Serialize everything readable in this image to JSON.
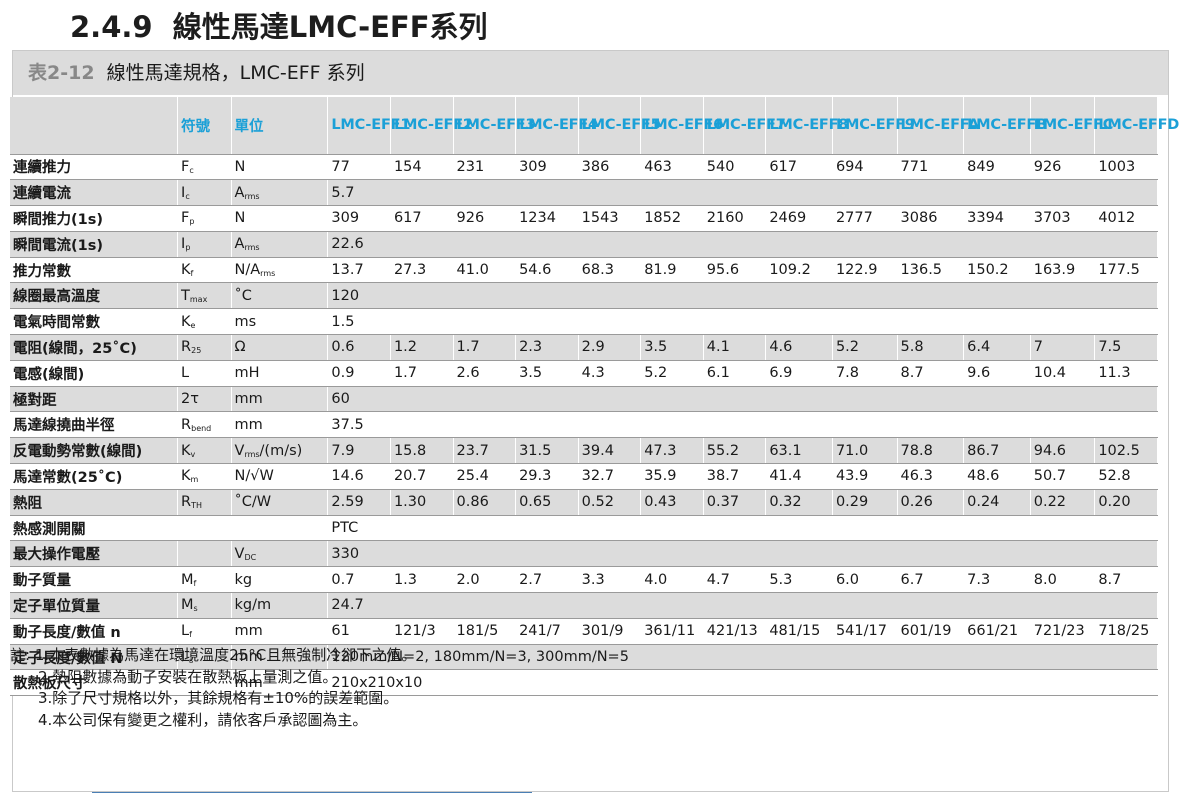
{
  "section": {
    "number": "2.4.9",
    "title": "線性馬達LMC-EFF系列"
  },
  "caption": {
    "number": "表2-12",
    "title": "線性馬達規格，LMC-EFF 系列"
  },
  "table": {
    "header": {
      "param": "",
      "symbol": "符號",
      "unit": "單位",
      "models": [
        "LMC-EFF1",
        "LMC-EFF2",
        "LMC-EFF3",
        "LMC-EFF4",
        "LMC-EFF5",
        "LMC-EFF6",
        "LMC-EFF7",
        "LMC-EFF8",
        "LMC-EFF9",
        "LMC-EFFA",
        "LMC-EFFB",
        "LMC-EFFC",
        "LMC-EFFD"
      ]
    },
    "rows": [
      {
        "param": "連續推力",
        "sym": "F",
        "sub": "c",
        "unit": "N",
        "unit_sub": "",
        "values": [
          "77",
          "154",
          "231",
          "309",
          "386",
          "463",
          "540",
          "617",
          "694",
          "771",
          "849",
          "926",
          "1003"
        ]
      },
      {
        "param": "連續電流",
        "sym": "I",
        "sub": "c",
        "unit": "A",
        "unit_sub": "rms",
        "span": "5.7"
      },
      {
        "param": "瞬間推力(1s)",
        "sym": "F",
        "sub": "p",
        "unit": "N",
        "unit_sub": "",
        "values": [
          "309",
          "617",
          "926",
          "1234",
          "1543",
          "1852",
          "2160",
          "2469",
          "2777",
          "3086",
          "3394",
          "3703",
          "4012"
        ]
      },
      {
        "param": "瞬間電流(1s)",
        "sym": "I",
        "sub": "p",
        "unit": "A",
        "unit_sub": "rms",
        "span": "22.6"
      },
      {
        "param": "推力常數",
        "sym": "K",
        "sub": "f",
        "unit": "N/A",
        "unit_sub": "rms",
        "values": [
          "13.7",
          "27.3",
          "41.0",
          "54.6",
          "68.3",
          "81.9",
          "95.6",
          "109.2",
          "122.9",
          "136.5",
          "150.2",
          "163.9",
          "177.5"
        ]
      },
      {
        "param": "線圈最高溫度",
        "sym": "T",
        "sub": "max",
        "unit": "˚C",
        "unit_sub": "",
        "span": "120"
      },
      {
        "param": "電氣時間常數",
        "sym": "K",
        "sub": "e",
        "unit": "ms",
        "unit_sub": "",
        "span": "1.5"
      },
      {
        "param": "電阻(線間，25˚C)",
        "sym": "R",
        "sub": "25",
        "unit": "Ω",
        "unit_sub": "",
        "values": [
          "0.6",
          "1.2",
          "1.7",
          "2.3",
          "2.9",
          "3.5",
          "4.1",
          "4.6",
          "5.2",
          "5.8",
          "6.4",
          "7",
          "7.5"
        ]
      },
      {
        "param": "電感(線間)",
        "sym": "L",
        "sub": "",
        "unit": "mH",
        "unit_sub": "",
        "values": [
          "0.9",
          "1.7",
          "2.6",
          "3.5",
          "4.3",
          "5.2",
          "6.1",
          "6.9",
          "7.8",
          "8.7",
          "9.6",
          "10.4",
          "11.3"
        ]
      },
      {
        "param": "極對距",
        "sym": "2τ",
        "sub": "",
        "unit": "mm",
        "unit_sub": "",
        "span": "60"
      },
      {
        "param": "馬達線撓曲半徑",
        "sym": "R",
        "sub": "bend",
        "unit": "mm",
        "unit_sub": "",
        "span": "37.5"
      },
      {
        "param": "反電動勢常數(線間)",
        "sym": "K",
        "sub": "v",
        "unit": "V",
        "unit_sub": "rms",
        "unit_tail": "/(m/s)",
        "values": [
          "7.9",
          "15.8",
          "23.7",
          "31.5",
          "39.4",
          "47.3",
          "55.2",
          "63.1",
          "71.0",
          "78.8",
          "86.7",
          "94.6",
          "102.5"
        ]
      },
      {
        "param": "馬達常數(25˚C)",
        "sym": "K",
        "sub": "m",
        "unit": "N/√W",
        "unit_sub": "",
        "values": [
          "14.6",
          "20.7",
          "25.4",
          "29.3",
          "32.7",
          "35.9",
          "38.7",
          "41.4",
          "43.9",
          "46.3",
          "48.6",
          "50.7",
          "52.8"
        ]
      },
      {
        "param": "熱阻",
        "sym": "R",
        "sub": "TH",
        "unit": "˚C/W",
        "unit_sub": "",
        "values": [
          "2.59",
          "1.30",
          "0.86",
          "0.65",
          "0.52",
          "0.43",
          "0.37",
          "0.32",
          "0.29",
          "0.26",
          "0.24",
          "0.22",
          "0.20"
        ]
      },
      {
        "param": "熱感測開關",
        "sym": "",
        "sub": "",
        "unit": "",
        "unit_sub": "",
        "span": "PTC"
      },
      {
        "param": "最大操作電壓",
        "sym": "",
        "sub": "",
        "unit": "V",
        "unit_sub": "DC",
        "span": "330"
      },
      {
        "param": "動子質量",
        "sym": "M",
        "sub": "f",
        "unit": "kg",
        "unit_sub": "",
        "values": [
          "0.7",
          "1.3",
          "2.0",
          "2.7",
          "3.3",
          "4.0",
          "4.7",
          "5.3",
          "6.0",
          "6.7",
          "7.3",
          "8.0",
          "8.7"
        ]
      },
      {
        "param": "定子單位質量",
        "sym": "M",
        "sub": "s",
        "unit": "kg/m",
        "unit_sub": "",
        "span": "24.7"
      },
      {
        "param": "動子長度/數值 n",
        "sym": "L",
        "sub": "f",
        "unit": "mm",
        "unit_sub": "",
        "values": [
          "61",
          "121/3",
          "181/5",
          "241/7",
          "301/9",
          "361/11",
          "421/13",
          "481/15",
          "541/17",
          "601/19",
          "661/21",
          "721/23",
          "718/25"
        ]
      },
      {
        "param": "定子長度/數值 N",
        "sym": "L",
        "sub": "s",
        "unit": "mm",
        "unit_sub": "",
        "span": "120mm/N=2, 180mm/N=3, 300mm/N=5"
      },
      {
        "param": "散熱板尺寸",
        "sym": "",
        "sub": "",
        "unit": "mm",
        "unit_sub": "",
        "span": "210x210x10"
      }
    ]
  },
  "notes": [
    "註: 1.本表數據為馬達在環境溫度25°C且無強制冷卻下之值。",
    "2.熱阻數據為動子安裝在散熱板上量測之值。",
    "3.除了尺寸規格以外，其餘規格有±10%的誤差範圍。",
    "4.本公司保有變更之權利，請依客戶承認圖為主。"
  ]
}
